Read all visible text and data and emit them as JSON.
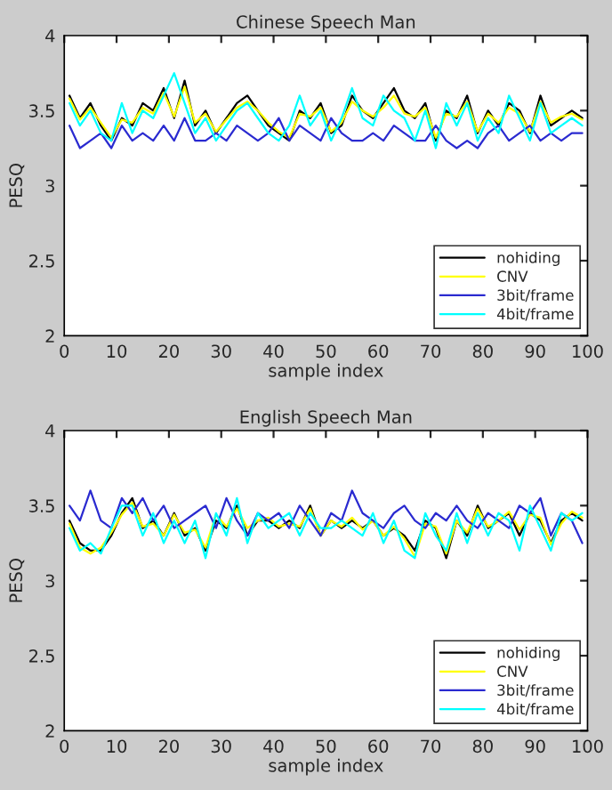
{
  "chart_data": [
    {
      "type": "line",
      "title": "Chinese Speech Man",
      "xlabel": "sample index",
      "ylabel": "PESQ",
      "xlim": [
        0,
        100
      ],
      "ylim": [
        2,
        4
      ],
      "xticks": [
        0,
        10,
        20,
        30,
        40,
        50,
        60,
        70,
        80,
        90,
        100
      ],
      "yticks": [
        2,
        2.5,
        3,
        3.5,
        4
      ],
      "grid": false,
      "legend": "lower right",
      "line_style": "solid",
      "marker": "none",
      "x": [
        1,
        3,
        5,
        7,
        9,
        11,
        13,
        15,
        17,
        19,
        21,
        23,
        25,
        27,
        29,
        31,
        33,
        35,
        37,
        39,
        41,
        43,
        45,
        47,
        49,
        51,
        53,
        55,
        57,
        59,
        61,
        63,
        65,
        67,
        69,
        71,
        73,
        75,
        77,
        79,
        81,
        83,
        85,
        87,
        89,
        91,
        93,
        95,
        97,
        99
      ],
      "series": [
        {
          "name": "nohiding",
          "color": "#000000",
          "values": [
            3.6,
            3.45,
            3.55,
            3.4,
            3.3,
            3.45,
            3.4,
            3.55,
            3.5,
            3.65,
            3.45,
            3.7,
            3.4,
            3.5,
            3.35,
            3.45,
            3.55,
            3.6,
            3.5,
            3.4,
            3.35,
            3.3,
            3.5,
            3.45,
            3.55,
            3.35,
            3.4,
            3.6,
            3.5,
            3.45,
            3.55,
            3.65,
            3.5,
            3.45,
            3.55,
            3.3,
            3.5,
            3.45,
            3.6,
            3.35,
            3.5,
            3.4,
            3.55,
            3.5,
            3.35,
            3.6,
            3.4,
            3.45,
            3.5,
            3.45
          ]
        },
        {
          "name": "CNV",
          "color": "#ffff00",
          "values": [
            3.58,
            3.44,
            3.52,
            3.42,
            3.32,
            3.44,
            3.42,
            3.52,
            3.48,
            3.62,
            3.46,
            3.66,
            3.42,
            3.48,
            3.36,
            3.44,
            3.52,
            3.56,
            3.5,
            3.42,
            3.36,
            3.32,
            3.48,
            3.46,
            3.52,
            3.36,
            3.42,
            3.56,
            3.5,
            3.46,
            3.52,
            3.6,
            3.48,
            3.46,
            3.52,
            3.32,
            3.48,
            3.46,
            3.56,
            3.36,
            3.48,
            3.42,
            3.52,
            3.48,
            3.36,
            3.56,
            3.42,
            3.46,
            3.48,
            3.44
          ]
        },
        {
          "name": "3bit/frame",
          "color": "#2a2ad0",
          "values": [
            3.4,
            3.25,
            3.3,
            3.35,
            3.25,
            3.4,
            3.3,
            3.35,
            3.3,
            3.4,
            3.3,
            3.45,
            3.3,
            3.3,
            3.35,
            3.3,
            3.4,
            3.35,
            3.3,
            3.35,
            3.45,
            3.3,
            3.4,
            3.35,
            3.3,
            3.45,
            3.35,
            3.3,
            3.3,
            3.35,
            3.3,
            3.4,
            3.35,
            3.3,
            3.3,
            3.4,
            3.3,
            3.25,
            3.3,
            3.25,
            3.35,
            3.4,
            3.3,
            3.35,
            3.4,
            3.3,
            3.35,
            3.3,
            3.35,
            3.35
          ]
        },
        {
          "name": "4bit/frame",
          "color": "#00ffff",
          "values": [
            3.55,
            3.4,
            3.5,
            3.35,
            3.3,
            3.55,
            3.35,
            3.5,
            3.45,
            3.6,
            3.75,
            3.55,
            3.35,
            3.45,
            3.3,
            3.4,
            3.5,
            3.55,
            3.45,
            3.35,
            3.3,
            3.4,
            3.6,
            3.4,
            3.5,
            3.3,
            3.45,
            3.65,
            3.45,
            3.4,
            3.6,
            3.5,
            3.45,
            3.3,
            3.5,
            3.25,
            3.55,
            3.4,
            3.55,
            3.3,
            3.45,
            3.35,
            3.6,
            3.45,
            3.3,
            3.55,
            3.35,
            3.4,
            3.45,
            3.4
          ]
        }
      ]
    },
    {
      "type": "line",
      "title": "English Speech Man",
      "xlabel": "sample index",
      "ylabel": "PESQ",
      "xlim": [
        0,
        100
      ],
      "ylim": [
        2,
        4
      ],
      "xticks": [
        0,
        10,
        20,
        30,
        40,
        50,
        60,
        70,
        80,
        90,
        100
      ],
      "yticks": [
        2,
        2.5,
        3,
        3.5,
        4
      ],
      "grid": false,
      "legend": "lower right",
      "line_style": "solid",
      "marker": "none",
      "x": [
        1,
        3,
        5,
        7,
        9,
        11,
        13,
        15,
        17,
        19,
        21,
        23,
        25,
        27,
        29,
        31,
        33,
        35,
        37,
        39,
        41,
        43,
        45,
        47,
        49,
        51,
        53,
        55,
        57,
        59,
        61,
        63,
        65,
        67,
        69,
        71,
        73,
        75,
        77,
        79,
        81,
        83,
        85,
        87,
        89,
        91,
        93,
        95,
        97,
        99
      ],
      "series": [
        {
          "name": "nohiding",
          "color": "#000000",
          "values": [
            3.4,
            3.25,
            3.2,
            3.2,
            3.3,
            3.45,
            3.55,
            3.35,
            3.4,
            3.3,
            3.45,
            3.3,
            3.35,
            3.2,
            3.4,
            3.35,
            3.5,
            3.3,
            3.4,
            3.4,
            3.35,
            3.4,
            3.35,
            3.5,
            3.3,
            3.4,
            3.35,
            3.4,
            3.35,
            3.4,
            3.3,
            3.35,
            3.3,
            3.2,
            3.4,
            3.35,
            3.15,
            3.4,
            3.3,
            3.5,
            3.35,
            3.4,
            3.45,
            3.3,
            3.45,
            3.4,
            3.25,
            3.4,
            3.45,
            3.4
          ]
        },
        {
          "name": "CNV",
          "color": "#ffff00",
          "values": [
            3.38,
            3.22,
            3.18,
            3.22,
            3.32,
            3.44,
            3.52,
            3.36,
            3.38,
            3.3,
            3.44,
            3.32,
            3.34,
            3.22,
            3.44,
            3.36,
            3.48,
            3.35,
            3.4,
            3.42,
            3.36,
            3.38,
            3.36,
            3.48,
            3.3,
            3.4,
            3.36,
            3.42,
            3.34,
            3.4,
            3.3,
            3.36,
            3.28,
            3.16,
            3.38,
            3.36,
            3.18,
            3.4,
            3.32,
            3.48,
            3.36,
            3.4,
            3.46,
            3.34,
            3.44,
            3.42,
            3.24,
            3.38,
            3.46,
            3.42
          ]
        },
        {
          "name": "3bit/frame",
          "color": "#2a2ad0",
          "values": [
            3.5,
            3.4,
            3.6,
            3.4,
            3.35,
            3.55,
            3.45,
            3.55,
            3.4,
            3.5,
            3.35,
            3.4,
            3.45,
            3.5,
            3.35,
            3.55,
            3.4,
            3.3,
            3.45,
            3.4,
            3.45,
            3.35,
            3.5,
            3.4,
            3.3,
            3.45,
            3.4,
            3.6,
            3.45,
            3.4,
            3.35,
            3.45,
            3.5,
            3.4,
            3.35,
            3.45,
            3.4,
            3.5,
            3.4,
            3.35,
            3.45,
            3.4,
            3.35,
            3.5,
            3.45,
            3.55,
            3.3,
            3.45,
            3.4,
            3.25
          ]
        },
        {
          "name": "4bit/frame",
          "color": "#00ffff",
          "values": [
            3.35,
            3.2,
            3.25,
            3.18,
            3.35,
            3.5,
            3.5,
            3.3,
            3.45,
            3.25,
            3.4,
            3.25,
            3.4,
            3.15,
            3.45,
            3.3,
            3.55,
            3.25,
            3.45,
            3.35,
            3.4,
            3.45,
            3.3,
            3.45,
            3.35,
            3.35,
            3.4,
            3.35,
            3.3,
            3.45,
            3.25,
            3.4,
            3.2,
            3.15,
            3.45,
            3.3,
            3.2,
            3.45,
            3.25,
            3.45,
            3.3,
            3.45,
            3.4,
            3.2,
            3.5,
            3.35,
            3.2,
            3.45,
            3.4,
            3.45
          ]
        }
      ]
    }
  ]
}
